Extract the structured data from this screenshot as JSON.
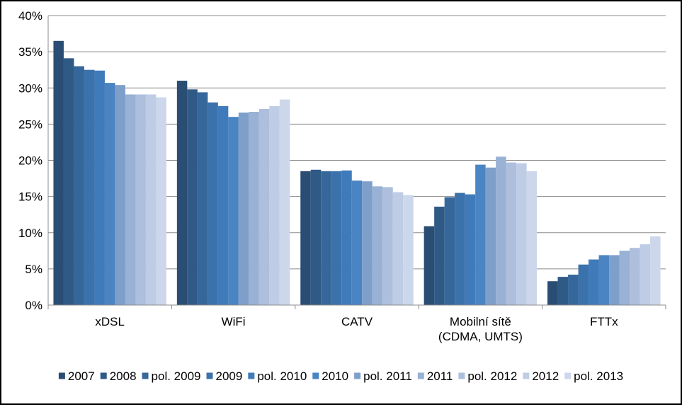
{
  "chart_data": {
    "type": "bar",
    "categories": [
      "xDSL",
      "WiFi",
      "CATV",
      "Mobilní sítě|(CDMA, UMTS)",
      "FTTx"
    ],
    "y_ticks": [
      "0%",
      "5%",
      "10%",
      "15%",
      "20%",
      "25%",
      "30%",
      "35%",
      "40%"
    ],
    "ylim": [
      0,
      40
    ],
    "grid": true,
    "legend_position": "bottom",
    "series": [
      {
        "name": "2007",
        "color": "#2a4d73",
        "values": [
          36.5,
          31.0,
          18.5,
          10.9,
          3.3
        ]
      },
      {
        "name": "2008",
        "color": "#305a86",
        "values": [
          34.1,
          29.8,
          18.7,
          13.6,
          3.9
        ]
      },
      {
        "name": "pol. 2009",
        "color": "#36679a",
        "values": [
          33.0,
          29.4,
          18.5,
          14.9,
          4.2
        ]
      },
      {
        "name": "2009",
        "color": "#3b72ab",
        "values": [
          32.5,
          28.0,
          18.5,
          15.5,
          5.6
        ]
      },
      {
        "name": "pol. 2010",
        "color": "#3f7bba",
        "values": [
          32.4,
          27.5,
          18.6,
          15.3,
          6.3
        ]
      },
      {
        "name": "2010",
        "color": "#4a84c2",
        "values": [
          30.7,
          26.0,
          17.2,
          19.4,
          6.9
        ]
      },
      {
        "name": "pol. 2011",
        "color": "#7f9fcb",
        "values": [
          30.4,
          26.6,
          17.1,
          19.0,
          6.9
        ]
      },
      {
        "name": "2011",
        "color": "#98b1d4",
        "values": [
          29.1,
          26.7,
          16.4,
          20.5,
          7.5
        ]
      },
      {
        "name": "pol. 2012",
        "color": "#aebfdd",
        "values": [
          29.1,
          27.1,
          16.3,
          19.7,
          7.9
        ]
      },
      {
        "name": "2012",
        "color": "#bfcce5",
        "values": [
          29.1,
          27.5,
          15.6,
          19.6,
          8.4
        ]
      },
      {
        "name": "pol. 2013",
        "color": "#cdd7eb",
        "values": [
          28.7,
          28.4,
          15.2,
          18.5,
          9.5
        ]
      }
    ]
  }
}
